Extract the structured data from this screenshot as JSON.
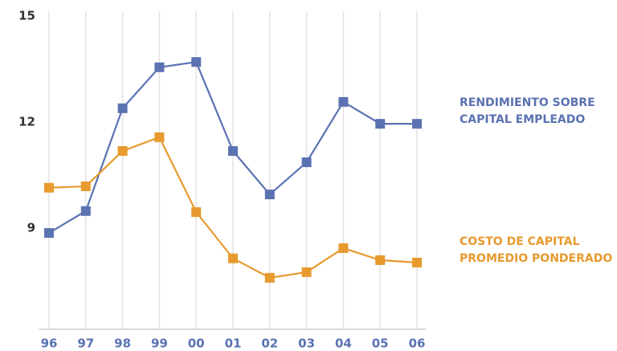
{
  "chart_data": {
    "type": "line",
    "categories": [
      "96",
      "97",
      "98",
      "99",
      "00",
      "01",
      "02",
      "03",
      "04",
      "05",
      "06"
    ],
    "series": [
      {
        "name": "RENDIMIENTO SOBRE CAPITAL EMPLEADO",
        "color": "#5b72b2",
        "values": [
          8.86,
          9.48,
          12.39,
          13.55,
          13.7,
          11.18,
          9.95,
          10.86,
          12.57,
          11.95,
          11.95
        ]
      },
      {
        "name": "COSTO DE CAPITAL PROMEDIO PONDERADO",
        "color": "#e79a2e",
        "values": [
          10.14,
          10.18,
          11.18,
          11.57,
          9.45,
          8.14,
          7.59,
          7.75,
          8.43,
          8.09,
          8.02
        ]
      }
    ],
    "ylim": [
      6.2,
      15
    ],
    "yticks": [
      9,
      12,
      15
    ],
    "grid": true
  }
}
